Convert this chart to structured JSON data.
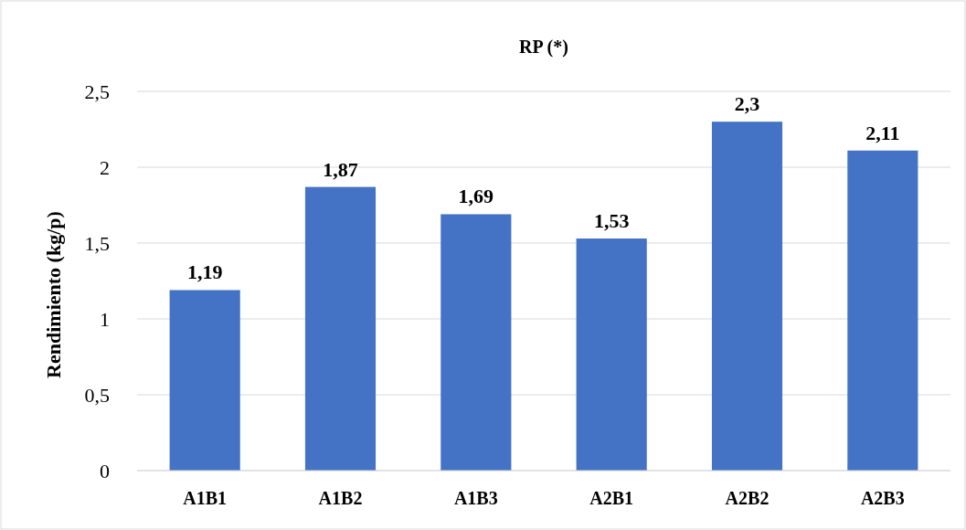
{
  "chart_data": {
    "type": "bar",
    "title": "RP (*)",
    "ylabel": "Rendimiento (kg/p)",
    "categories": [
      "A1B1",
      "A1B2",
      "A1B3",
      "A2B1",
      "A2B2",
      "A2B3"
    ],
    "values": [
      1.19,
      1.87,
      1.69,
      1.53,
      2.3,
      2.11
    ],
    "value_labels": [
      "1,19",
      "1,87",
      "1,69",
      "1,53",
      "2,3",
      "2,11"
    ],
    "color": "#4472c4",
    "ylim": [
      0,
      2.5
    ],
    "yticks": [
      0,
      {
        "value": 0.5,
        "label": "0,5"
      },
      1,
      {
        "value": 1.5,
        "label": "1,5"
      },
      2,
      {
        "value": 2.5,
        "label": "2,5"
      }
    ],
    "grid": "y"
  }
}
